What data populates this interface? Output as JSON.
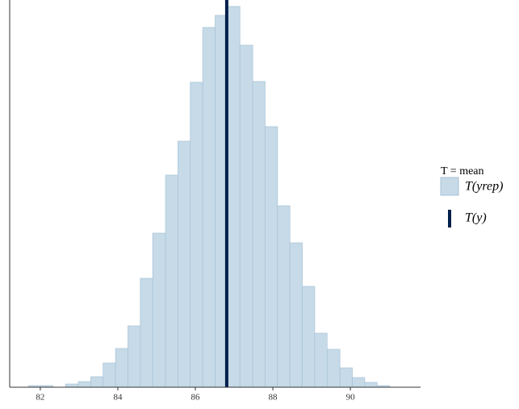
{
  "chart_data": {
    "type": "histogram",
    "bins": [
      81.69,
      82.01,
      82.33,
      82.65,
      82.98,
      83.3,
      83.62,
      83.94,
      84.26,
      84.58,
      84.9,
      85.23,
      85.55,
      85.87,
      86.19,
      86.51,
      86.83,
      87.15,
      87.48,
      87.8,
      88.12,
      88.44,
      88.76,
      89.08,
      89.4,
      89.73,
      90.05,
      90.37,
      90.69,
      91.01,
      91.33
    ],
    "series": [
      {
        "name": "T(yrep)",
        "color": "#c6dae8",
        "values": [
          2,
          2,
          0,
          4,
          7,
          13,
          30,
          48,
          76,
          135,
          191,
          263,
          305,
          378,
          446,
          461,
          472,
          424,
          379,
          323,
          225,
          179,
          125,
          67,
          47,
          24,
          12,
          6,
          2,
          0
        ]
      }
    ],
    "observed": {
      "name": "T(y)",
      "value": 86.81,
      "color": "#011f4b"
    },
    "legend_title": "T = mean",
    "xlim": [
      81.21,
      91.81
    ],
    "xticks": [
      82,
      84,
      86,
      88,
      90
    ],
    "ylim": [
      0,
      475
    ]
  }
}
